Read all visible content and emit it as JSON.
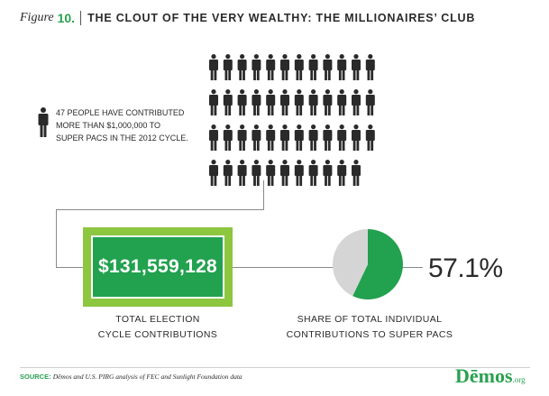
{
  "header": {
    "figure_word": "Figure",
    "figure_number": "10.",
    "title": "THE CLOUT OF THE VERY WEALTHY: THE MILLIONAIRES’ CLUB"
  },
  "note": {
    "lines": [
      "47 PEOPLE HAVE CONTRIBUTED",
      "MORE THAN $1,000,000 TO",
      "SUPER PACS IN THE 2012 CYCLE."
    ],
    "icon": "person-icon"
  },
  "chart_data": [
    {
      "type": "pictograph",
      "unit_icon": "person-icon",
      "count": 47,
      "unit_label": "people who contributed more than $1,000,000 to Super PACs in the 2012 cycle"
    },
    {
      "type": "stat",
      "value": "$131,559,128",
      "label_lines": [
        "TOTAL ELECTION",
        "CYCLE CONTRIBUTIONS"
      ]
    },
    {
      "type": "pie",
      "slices": [
        {
          "name": "Super PACs",
          "value": 57.1,
          "color": "#22a14f"
        },
        {
          "name": "Other",
          "value": 42.9,
          "color": "#d5d5d5"
        }
      ],
      "value_label": "57.1%",
      "label_lines": [
        "SHARE OF TOTAL INDIVIDUAL",
        "CONTRIBUTIONS TO SUPER PACS"
      ]
    }
  ],
  "footer": {
    "source_key": "SOURCE:",
    "source_text": "Dēmos and U.S. PIRG analysis of FEC and Sunlight Foundation data",
    "logo_main": "Dēmos",
    "logo_suffix": ".org"
  },
  "colors": {
    "accent": "#22a14f",
    "bill_outer": "#8dc63f",
    "pie_rest": "#d5d5d5",
    "icon": "#2a2a2a"
  }
}
